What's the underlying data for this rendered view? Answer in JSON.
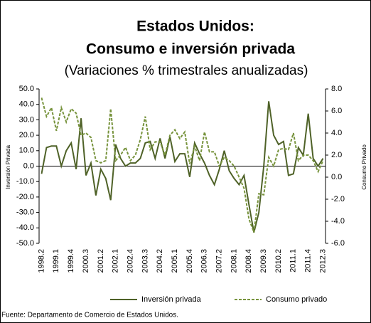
{
  "chart_data": {
    "type": "line",
    "title": "Estados Unidos:",
    "subtitle_line": "Consumo e inversión privada",
    "subtitle": "(Variaciones % trimestrales anualizadas)",
    "ylabel": "Inversión Privada",
    "y2label": "Consumo Privado",
    "source": "Fuente: Departamento    de Comercio de Estados Unidos.",
    "categories": [
      "1998.2",
      null,
      null,
      "1999.1",
      null,
      null,
      "1999.4",
      null,
      null,
      "2000.3",
      null,
      null,
      "2001.2",
      null,
      null,
      "2002.1",
      null,
      null,
      "2002.4",
      null,
      null,
      "2003.3",
      null,
      null,
      "2004.2",
      null,
      null,
      "2005.1",
      null,
      null,
      "2005.4",
      null,
      null,
      "2006.3",
      null,
      null,
      "2007.2",
      null,
      null,
      "2008.1",
      null,
      null,
      "2008.4",
      null,
      null,
      "2009.3",
      null,
      null,
      "2010.2",
      null,
      null,
      "2011.1",
      null,
      null,
      "2011.4",
      null,
      null,
      "2012.3"
    ],
    "series": [
      {
        "name": "Inversión privada",
        "color": "#4f6228",
        "dash": false,
        "values": [
          -5,
          12,
          13,
          13,
          0,
          10,
          15,
          -2,
          31,
          -6,
          2,
          -19,
          -2,
          -8,
          -22,
          14,
          5,
          0,
          2,
          2,
          5,
          15,
          16,
          5,
          18,
          5,
          19,
          3,
          8,
          8,
          -7,
          15,
          8,
          2,
          -6,
          -12,
          -2,
          10,
          -3,
          -8,
          -12,
          -6,
          -25,
          -43,
          -30,
          0,
          42,
          20,
          14,
          16,
          -6,
          -5,
          12,
          7,
          34,
          5,
          0,
          5
        ]
      },
      {
        "name": "Consumo privado",
        "color": "#77933c",
        "dash": true,
        "axis": "y2",
        "values": [
          7.2,
          5.5,
          6.3,
          4.2,
          6.3,
          5.0,
          6.2,
          5.8,
          3.8,
          4.0,
          3.6,
          1.5,
          1.3,
          1.5,
          6.2,
          1.5,
          2.0,
          2.7,
          1.5,
          2.0,
          3.4,
          5.5,
          2.5,
          3.2,
          3.2,
          2.0,
          3.8,
          4.3,
          3.5,
          4.1,
          1.2,
          2.8,
          1.5,
          4.1,
          2.3,
          2.3,
          1.0,
          1.8,
          1.5,
          1.0,
          0.0,
          -1.0,
          -3.8,
          -5.0,
          -1.5,
          -1.6,
          1.8,
          1.0,
          2.5,
          2.6,
          2.5,
          4.0,
          1.5,
          2.0,
          2.0,
          1.5,
          0.5,
          1.5
        ]
      }
    ],
    "ylim": [
      -50,
      50
    ],
    "yticks": [
      {
        "value": -50,
        "label": "-50.0"
      },
      {
        "value": -40,
        "label": "-40.0"
      },
      {
        "value": -30,
        "label": "-30.0"
      },
      {
        "value": -20,
        "label": "-20.0"
      },
      {
        "value": -10,
        "label": "-10.0"
      },
      {
        "value": 0,
        "label": "0.0"
      },
      {
        "value": 10,
        "label": "10.0"
      },
      {
        "value": 20,
        "label": "20.0"
      },
      {
        "value": 30,
        "label": "30.0"
      },
      {
        "value": 40,
        "label": "40.0"
      },
      {
        "value": 50,
        "label": "50.0"
      }
    ],
    "y2lim": [
      -6,
      8
    ],
    "y2ticks": [
      {
        "value": -6,
        "label": "-6.0"
      },
      {
        "value": -4,
        "label": "-4.0"
      },
      {
        "value": -2,
        "label": "-2.0"
      },
      {
        "value": 0,
        "label": "0.0"
      },
      {
        "value": 2,
        "label": "2.0"
      },
      {
        "value": 4,
        "label": "4.0"
      },
      {
        "value": 6,
        "label": "6.0"
      },
      {
        "value": 8,
        "label": "8.0"
      }
    ],
    "grid": false,
    "legend": "bottom"
  }
}
